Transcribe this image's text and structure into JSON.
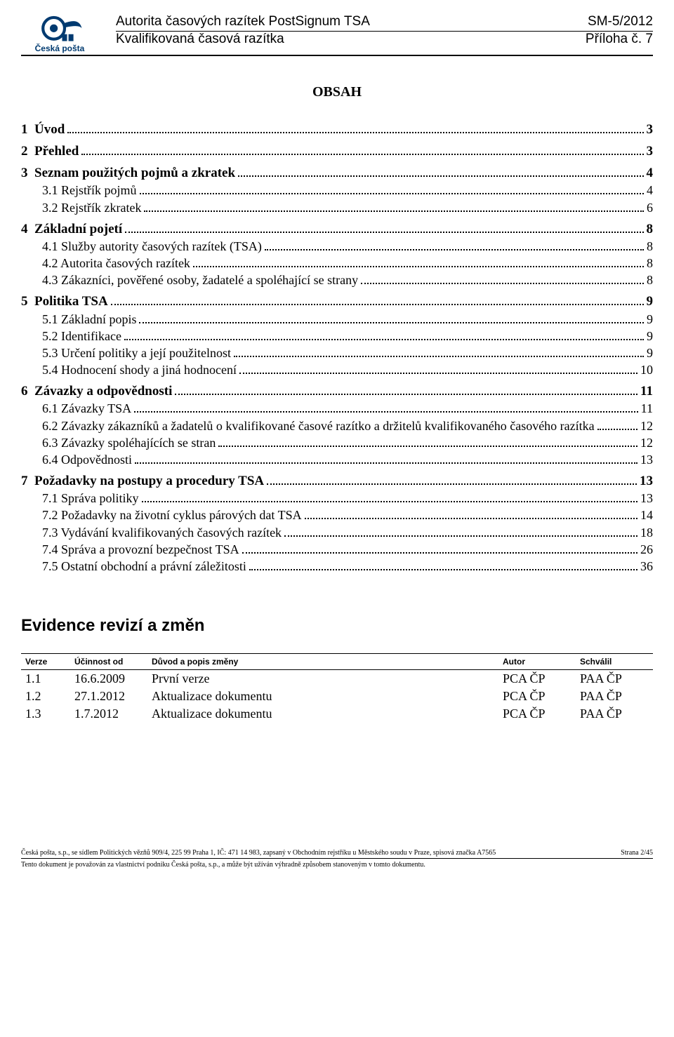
{
  "header": {
    "logo_text": "Česká pošta",
    "title1": "Autorita časových razítek PostSignum TSA",
    "title2": "Kvalifikovaná časová razítka",
    "doc_id": "SM-5/2012",
    "annex": "Příloha č. 7",
    "logo_color": "#003a70"
  },
  "obsah_title": "OBSAH",
  "toc": [
    {
      "label": "1  Úvod",
      "page": "3",
      "bold": true
    },
    {
      "label": "2  Přehled",
      "page": "3",
      "bold": true
    },
    {
      "label": "3  Seznam použitých pojmů a zkratek",
      "page": "4",
      "bold": true
    },
    {
      "label": "3.1 Rejstřík pojmů",
      "page": "4",
      "sub": true
    },
    {
      "label": "3.2 Rejstřík zkratek",
      "page": "6",
      "sub": true
    },
    {
      "label": "4  Základní pojetí",
      "page": "8",
      "bold": true
    },
    {
      "label": "4.1 Služby autority časových razítek (TSA)",
      "page": "8",
      "sub": true
    },
    {
      "label": "4.2 Autorita časových razítek",
      "page": "8",
      "sub": true
    },
    {
      "label": "4.3 Zákazníci, pověřené osoby, žadatelé a spoléhající se strany",
      "page": "8",
      "sub": true
    },
    {
      "label": "5  Politika TSA",
      "page": "9",
      "bold": true
    },
    {
      "label": "5.1 Základní popis",
      "page": "9",
      "sub": true
    },
    {
      "label": "5.2 Identifikace",
      "page": "9",
      "sub": true
    },
    {
      "label": "5.3 Určení politiky a její použitelnost",
      "page": "9",
      "sub": true
    },
    {
      "label": "5.4 Hodnocení shody a jiná hodnocení",
      "page": "10",
      "sub": true
    },
    {
      "label": "6  Závazky a odpovědnosti",
      "page": "11",
      "bold": true
    },
    {
      "label": "6.1 Závazky TSA",
      "page": "11",
      "sub": true
    },
    {
      "label": "6.2 Závazky zákazníků a žadatelů o kvalifikované časové razítko a držitelů kvalifikovaného časového razítka",
      "page": "12",
      "sub": true
    },
    {
      "label": "6.3 Závazky spoléhajících se stran",
      "page": "12",
      "sub": true
    },
    {
      "label": "6.4 Odpovědnosti",
      "page": "13",
      "sub": true
    },
    {
      "label": "7  Požadavky na postupy a procedury TSA",
      "page": "13",
      "bold": true
    },
    {
      "label": "7.1 Správa politiky",
      "page": "13",
      "sub": true
    },
    {
      "label": "7.2 Požadavky na životní cyklus párových dat TSA",
      "page": "14",
      "sub": true
    },
    {
      "label": "7.3 Vydávání kvalifikovaných časových razítek",
      "page": "18",
      "sub": true
    },
    {
      "label": "7.4 Správa a provozní bezpečnost TSA",
      "page": "26",
      "sub": true
    },
    {
      "label": "7.5 Ostatní obchodní a právní záležitosti",
      "page": "36",
      "sub": true
    }
  ],
  "evidence_title": "Evidence revizí a změn",
  "rev_headers": {
    "verze": "Verze",
    "ucinnost": "Účinnost od",
    "duvod": "Důvod a popis změny",
    "autor": "Autor",
    "schvalil": "Schválil"
  },
  "revisions": [
    {
      "verze": "1.1",
      "ucinnost": "16.6.2009",
      "duvod": "První verze",
      "autor": "PCA ČP",
      "schvalil": "PAA ČP"
    },
    {
      "verze": "1.2",
      "ucinnost": "27.1.2012",
      "duvod": "Aktualizace dokumentu",
      "autor": "PCA ČP",
      "schvalil": "PAA ČP"
    },
    {
      "verze": "1.3",
      "ucinnost": "1.7.2012",
      "duvod": "Aktualizace dokumentu",
      "autor": "PCA ČP",
      "schvalil": "PAA ČP"
    }
  ],
  "footer": {
    "line1_left": "Česká pošta, s.p., se sídlem Politických vězňů 909/4, 225 99 Praha 1, IČ: 471 14 983, zapsaný v Obchodním rejstříku u Městského soudu v Praze, spisová značka A7565",
    "page_info": "Strana 2/45",
    "line2": "Tento dokument je považován za vlastnictví podniku Česká pošta, s.p., a může být užíván výhradně způsobem stanoveným v tomto dokumentu."
  }
}
